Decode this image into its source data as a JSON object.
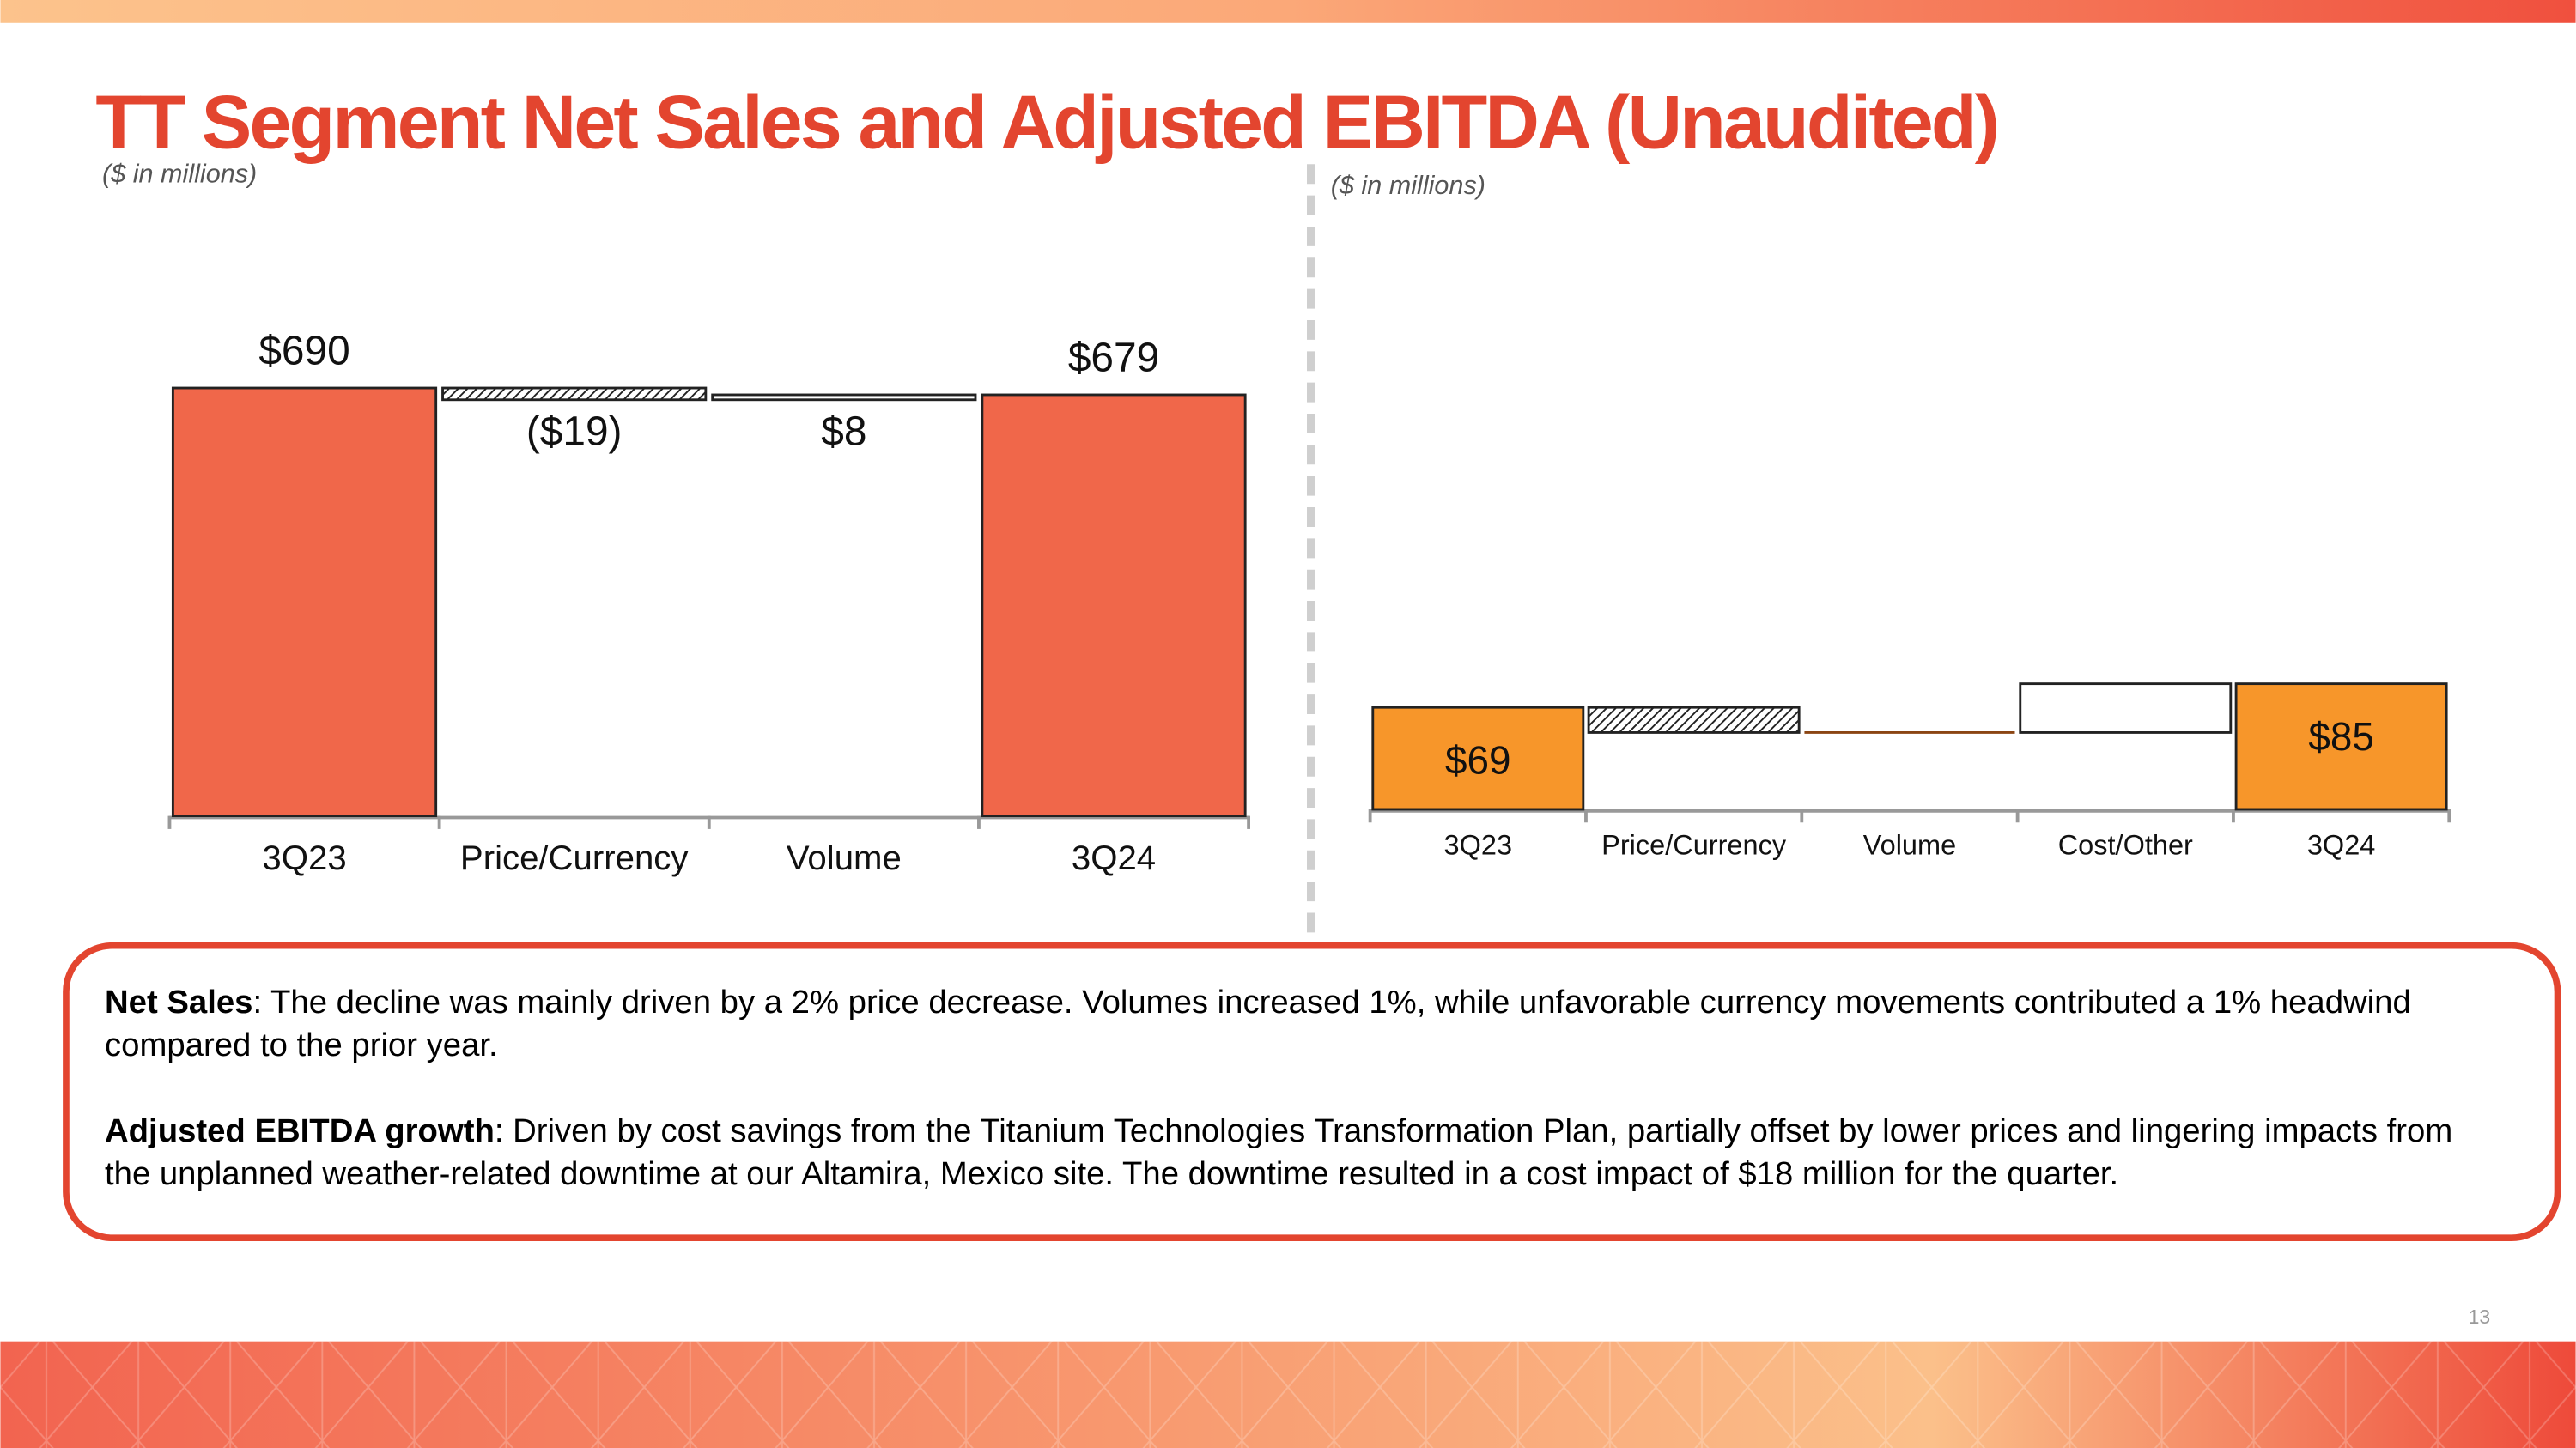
{
  "title": "TT Segment Net Sales and Adjusted EBITDA (Unaudited)",
  "chart_data": [
    {
      "type": "waterfall",
      "subtitle": "($ in millions)",
      "categories": [
        "3Q23",
        "Price/Currency",
        "Volume",
        "3Q24"
      ],
      "values": [
        690,
        -19,
        8,
        679
      ],
      "value_labels": [
        "$690",
        "($19)",
        "$8",
        "$679"
      ],
      "color": "#f0674a",
      "labels": "outside",
      "ylim": [
        0,
        900
      ]
    },
    {
      "type": "waterfall",
      "subtitle": "($ in millions)",
      "categories": [
        "3Q23",
        "Price/Currency",
        "Volume",
        "Cost/Other",
        "3Q24"
      ],
      "values": [
        69,
        -17,
        0,
        33,
        85
      ],
      "value_labels": [
        "$69",
        null,
        null,
        null,
        "$85"
      ],
      "color": "#f7962a",
      "labels": "inside",
      "ylim": [
        0,
        400
      ]
    }
  ],
  "notes": [
    {
      "lead": "Net Sales",
      "text": ": The decline was mainly driven by a 2% price decrease. Volumes increased 1%, while unfavorable currency movements contributed a 1% headwind compared to the prior year."
    },
    {
      "lead": "Adjusted EBITDA growth",
      "text": ": Driven by cost savings from the Titanium Technologies Transformation Plan, partially offset by lower prices and lingering impacts from the unplanned weather-related downtime at our Altamira, Mexico site. The downtime resulted in a cost impact of $18 million for the quarter."
    }
  ],
  "page_number": "13"
}
